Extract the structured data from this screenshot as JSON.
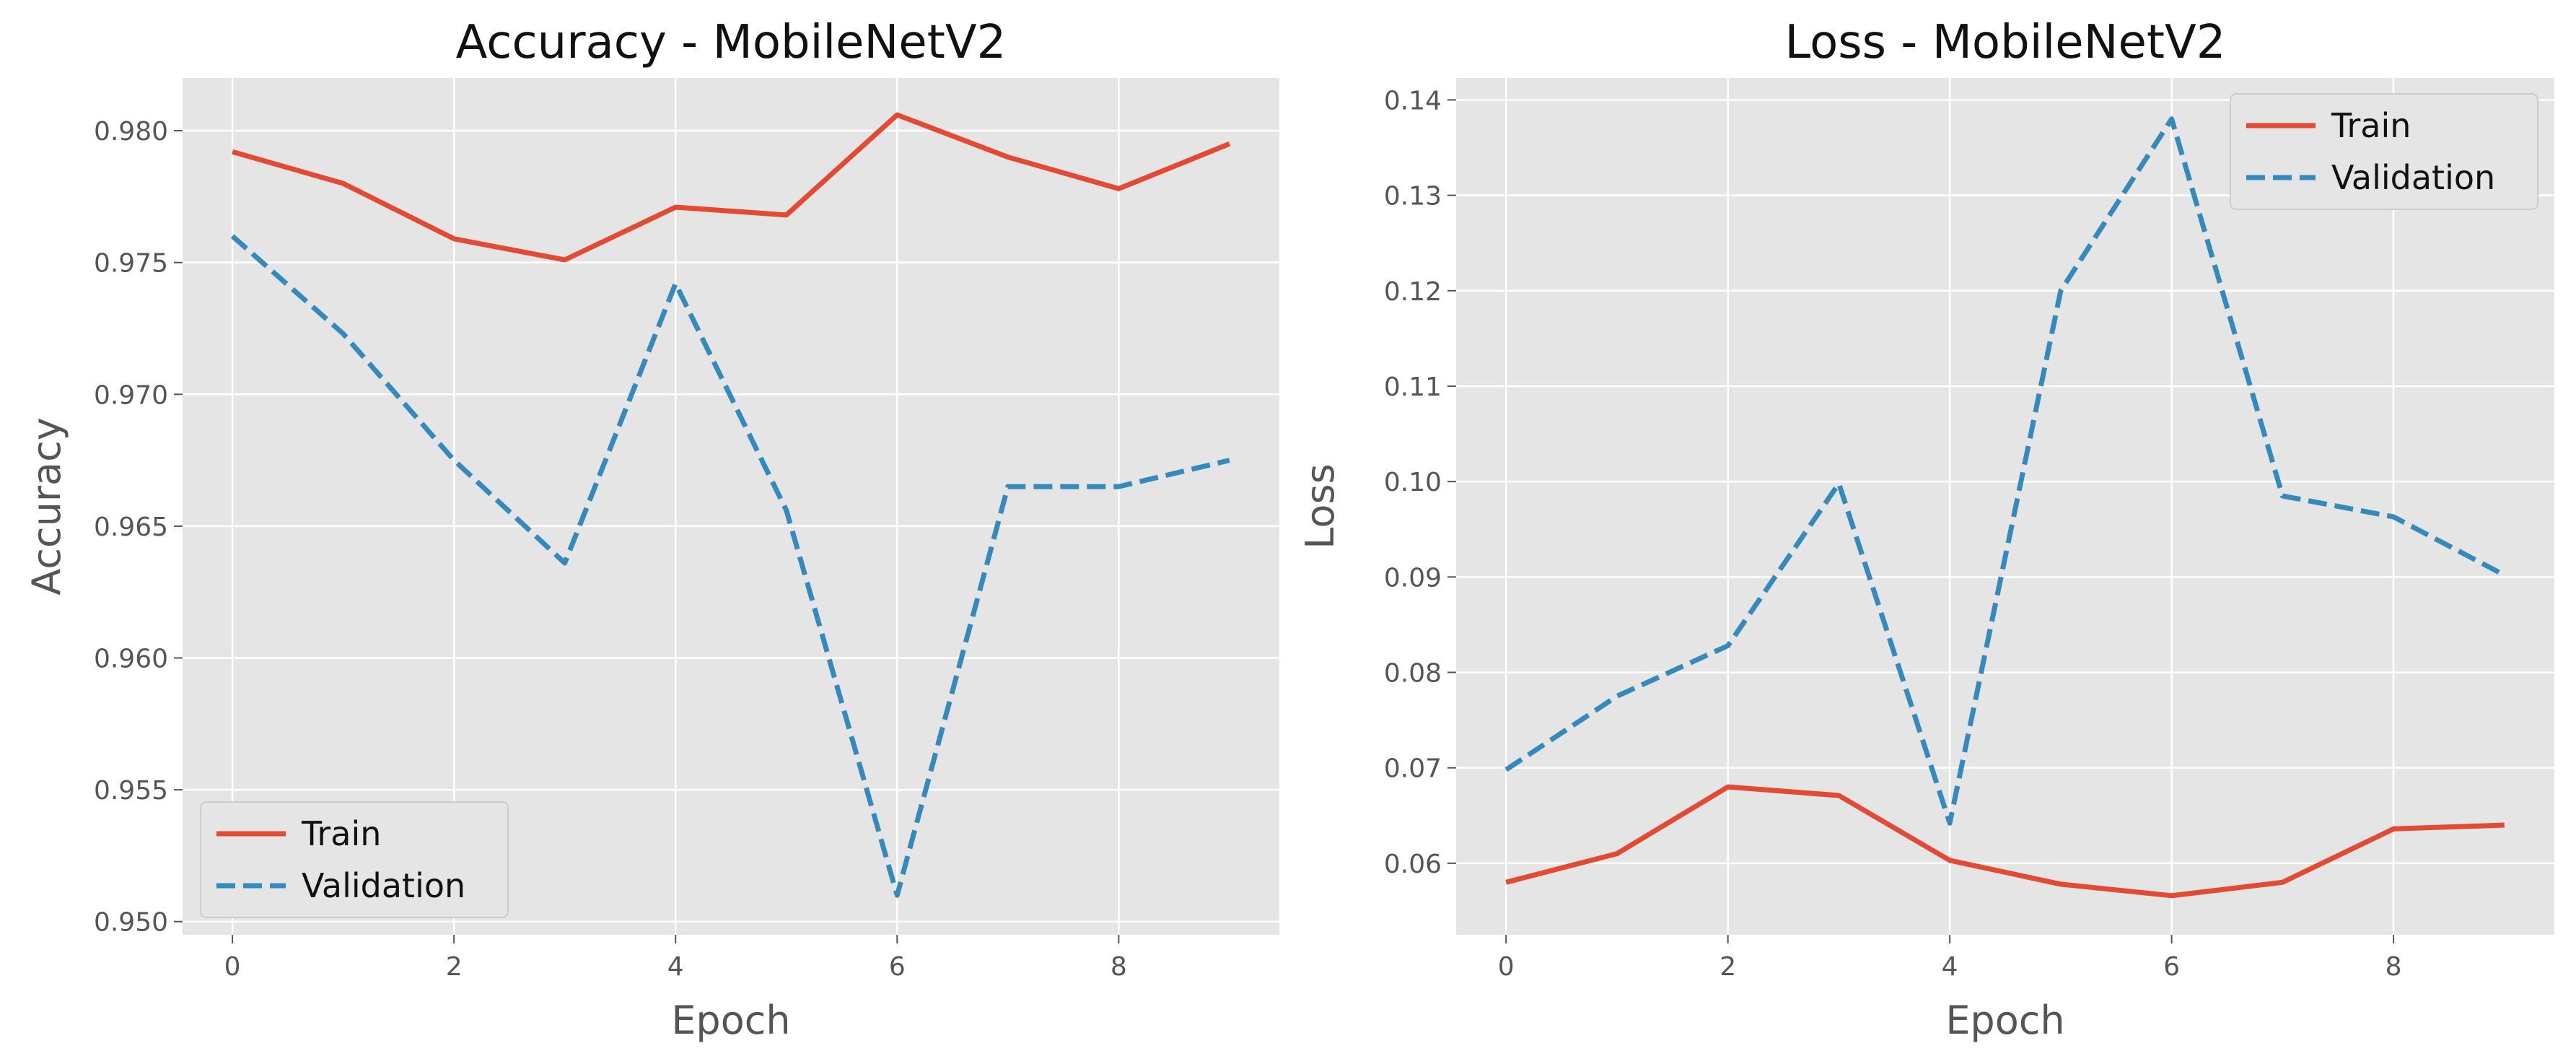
{
  "chart_data": [
    {
      "type": "line",
      "title": "Accuracy - MobileNetV2",
      "xlabel": "Epoch",
      "ylabel": "Accuracy",
      "x": [
        0,
        1,
        2,
        3,
        4,
        5,
        6,
        7,
        8,
        9
      ],
      "xticks": [
        "0",
        "2",
        "4",
        "6",
        "8"
      ],
      "yticks": [
        "0.950",
        "0.955",
        "0.960",
        "0.965",
        "0.970",
        "0.975",
        "0.980"
      ],
      "xlim": [
        -0.45,
        9.45
      ],
      "ylim": [
        0.9495,
        0.982
      ],
      "grid": true,
      "legend_position": "lower-left",
      "series": [
        {
          "name": "Train",
          "color": "#E24A33",
          "style": "solid",
          "values": [
            0.9792,
            0.978,
            0.9759,
            0.9751,
            0.9771,
            0.9768,
            0.9806,
            0.979,
            0.9778,
            0.9795
          ]
        },
        {
          "name": "Validation",
          "color": "#348ABD",
          "style": "dashed",
          "values": [
            0.976,
            0.9723,
            0.9675,
            0.9636,
            0.9742,
            0.9656,
            0.951,
            0.9665,
            0.9665,
            0.9675
          ]
        }
      ]
    },
    {
      "type": "line",
      "title": "Loss - MobileNetV2",
      "xlabel": "Epoch",
      "ylabel": "Loss",
      "x": [
        0,
        1,
        2,
        3,
        4,
        5,
        6,
        7,
        8,
        9
      ],
      "xticks": [
        "0",
        "2",
        "4",
        "6",
        "8"
      ],
      "yticks": [
        "0.06",
        "0.07",
        "0.08",
        "0.09",
        "0.10",
        "0.11",
        "0.12",
        "0.13",
        "0.14"
      ],
      "xlim": [
        -0.45,
        9.45
      ],
      "ylim": [
        0.0525,
        0.1423
      ],
      "grid": true,
      "legend_position": "top-right",
      "series": [
        {
          "name": "Train",
          "color": "#E24A33",
          "style": "solid",
          "values": [
            0.058,
            0.061,
            0.068,
            0.0671,
            0.0603,
            0.0578,
            0.0566,
            0.058,
            0.0636,
            0.064
          ]
        },
        {
          "name": "Validation",
          "color": "#348ABD",
          "style": "dashed",
          "values": [
            0.0698,
            0.0775,
            0.0828,
            0.0998,
            0.0642,
            0.12,
            0.138,
            0.0985,
            0.0963,
            0.0902
          ]
        }
      ]
    }
  ]
}
